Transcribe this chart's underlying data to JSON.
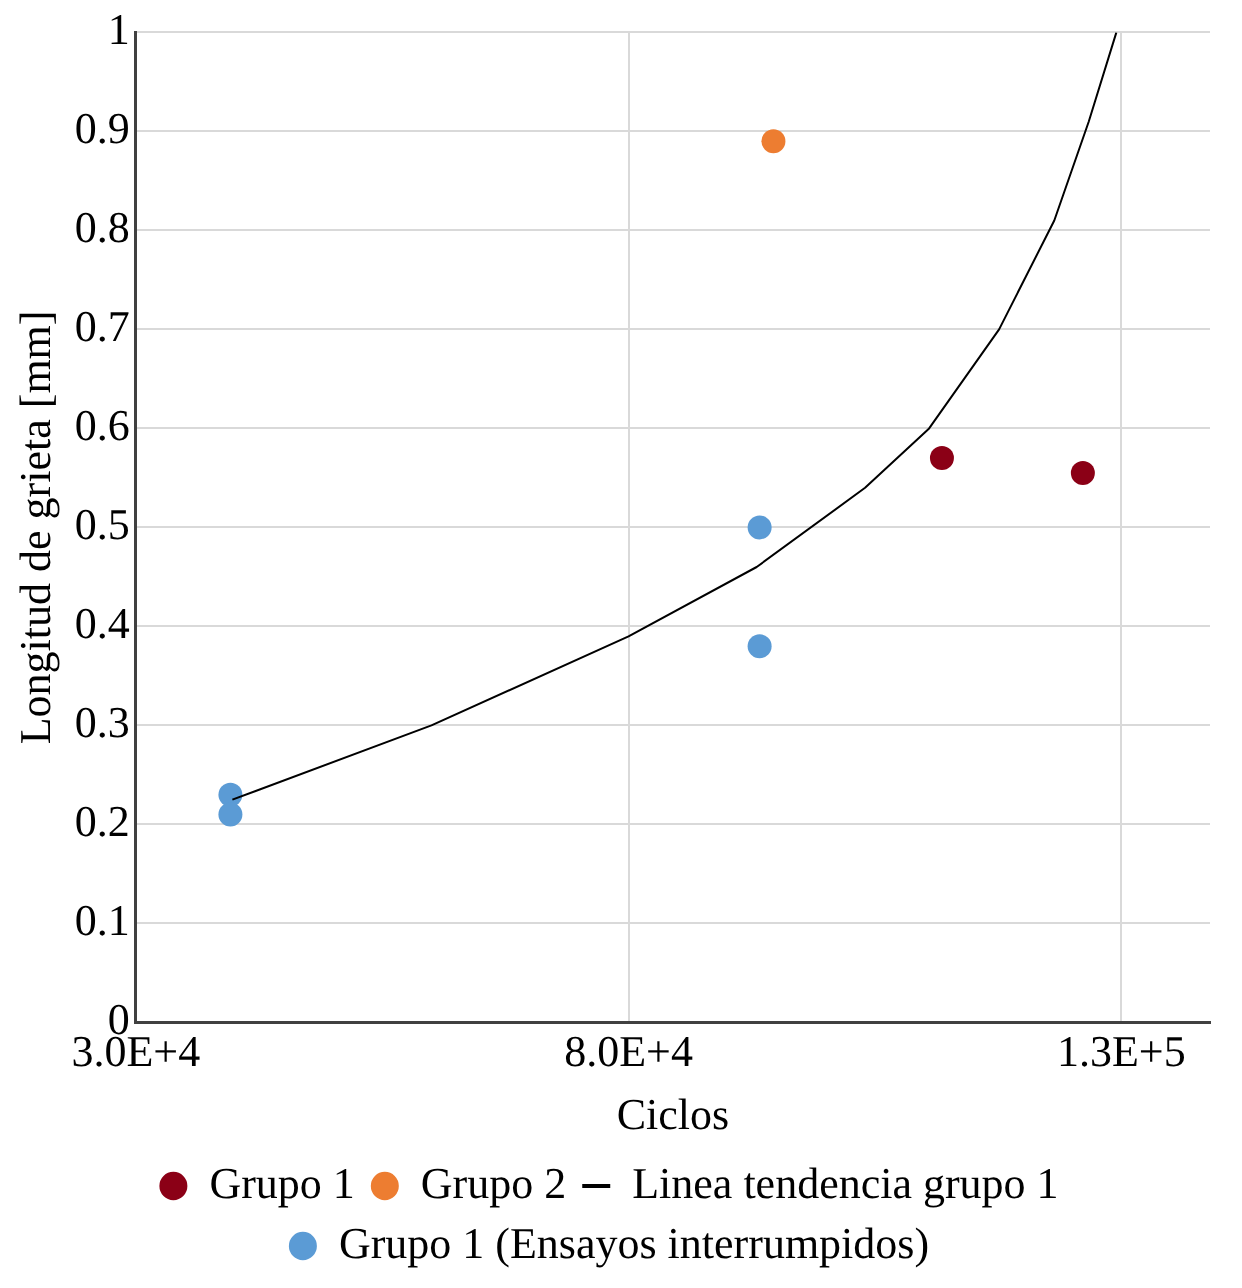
{
  "chart_data": {
    "type": "scatter",
    "xlabel": "Ciclos",
    "ylabel": "Longitud de grieta [mm]",
    "xlim": [
      30000,
      139000
    ],
    "xticks": [
      {
        "value": 30000,
        "label": "3.0E+4"
      },
      {
        "value": 80000,
        "label": "8.0E+4"
      },
      {
        "value": 130000,
        "label": "1.3E+5"
      }
    ],
    "ylim": [
      0,
      1
    ],
    "yticks": [
      0,
      0.1,
      0.2,
      0.3,
      0.4,
      0.5,
      0.6,
      0.7,
      0.8,
      0.9,
      1
    ],
    "grid": true,
    "legend": "bottom",
    "marker": "circle",
    "series": [
      {
        "name": "Grupo 1",
        "color": "#8b0016",
        "x": [
          111800,
          126100
        ],
        "values": [
          0.57,
          0.555
        ]
      },
      {
        "name": "Grupo 2",
        "color": "#ed7d31",
        "x": [
          94700
        ],
        "values": [
          0.89
        ]
      },
      {
        "name": "Linea tendencia grupo 1",
        "type": "line",
        "marker": "none",
        "line_style": "solid",
        "color": "#000000",
        "x": [
          39800,
          60000,
          80000,
          93000,
          104000,
          110500,
          117600,
          123200,
          126700,
          129500
        ],
        "values": [
          0.225,
          0.3,
          0.39,
          0.46,
          0.54,
          0.6,
          0.7,
          0.81,
          0.91,
          1.0
        ]
      },
      {
        "name": "Grupo 1 (Ensayos interrumpidos)",
        "color": "#5b9bd5",
        "x": [
          39600,
          39600,
          93300,
          93300
        ],
        "values": [
          0.23,
          0.21,
          0.5,
          0.38
        ]
      }
    ]
  }
}
